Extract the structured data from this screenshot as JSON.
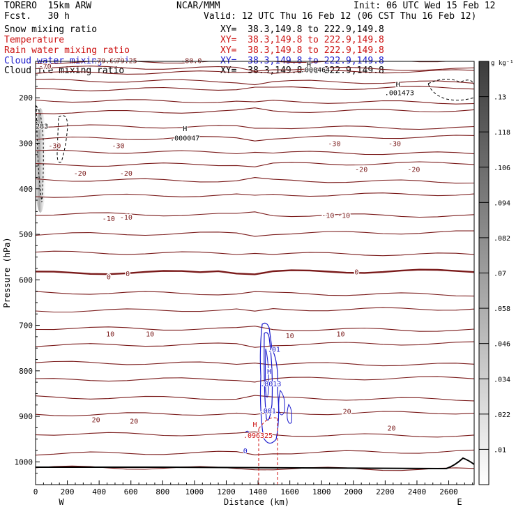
{
  "header": {
    "model": "TORERO  15km ARW",
    "org": "NCAR/MMM",
    "init": "Init: 06 UTC Wed 15 Feb 12",
    "fcst": "Fcst.   30 h",
    "valid": "Valid: 12 UTC Thu 16 Feb 12 (06 CST Thu 16 Feb 12)",
    "fields": [
      {
        "name": "Snow mixing ratio",
        "xy": "XY=  38.3,149.8 to 222.9,149.8",
        "color": "#000000"
      },
      {
        "name": "Temperature",
        "xy": "XY=  38.3,149.8 to 222.9,149.8",
        "color": "#cc1111"
      },
      {
        "name": "Rain water mixing ratio",
        "xy": "XY=  38.3,149.8 to 222.9,149.8",
        "color": "#cc1111"
      },
      {
        "name": "Cloud water mixing ratio",
        "xy": "XY=  38.3,149.8 to 222.9,149.8",
        "color": "#1a1acc"
      },
      {
        "name": "Cloud ice mixing ratio",
        "xy": "XY=  38.3,149.8 to 222.9,149.8",
        "color": "#000000"
      }
    ]
  },
  "chart_data": {
    "type": "cross-section",
    "title": "",
    "xlabel": "Distance (km)",
    "ylabel": "Pressure (hPa)",
    "x_end_labels": {
      "left": "W",
      "right": "E"
    },
    "xlim": [
      0,
      2760
    ],
    "ylim": [
      1050,
      120
    ],
    "x_ticks": [
      0,
      200,
      400,
      600,
      800,
      1000,
      1200,
      1400,
      1600,
      1800,
      2000,
      2200,
      2400,
      2600
    ],
    "y_ticks": [
      200,
      300,
      400,
      500,
      600,
      700,
      800,
      900,
      1000
    ],
    "grid": false,
    "colorbar": {
      "unit": "g kg⁻¹",
      "levels": [
        0.01,
        0.022,
        0.034,
        0.046,
        0.058,
        0.07,
        0.082,
        0.094,
        0.106,
        0.118,
        0.13
      ],
      "labels": [
        ".01",
        ".022",
        ".034",
        ".046",
        ".058",
        ".07",
        ".082",
        ".094",
        ".106",
        ".118",
        ".13"
      ],
      "color_low": "#ffffff",
      "color_high": "#3c3c3c"
    },
    "temperature_contours": {
      "interval_C": 5,
      "color": "#7a1a1a",
      "labels": [
        {
          "x": 60,
          "p": 130,
          "text": "-70"
        },
        {
          "x": 440,
          "p": 118,
          "text": "-79.69"
        },
        {
          "x": 560,
          "p": 118,
          "text": "-79.25"
        },
        {
          "x": 980,
          "p": 118,
          "text": "-80.0"
        },
        {
          "x": 120,
          "p": 305,
          "text": "-30"
        },
        {
          "x": 520,
          "p": 305,
          "text": "-30"
        },
        {
          "x": 1880,
          "p": 300,
          "text": "-30"
        },
        {
          "x": 2260,
          "p": 300,
          "text": "-30"
        },
        {
          "x": 280,
          "p": 365,
          "text": "-20"
        },
        {
          "x": 570,
          "p": 365,
          "text": "-20"
        },
        {
          "x": 2050,
          "p": 357,
          "text": "-20"
        },
        {
          "x": 2380,
          "p": 357,
          "text": "-20"
        },
        {
          "x": 460,
          "p": 465,
          "text": "-10"
        },
        {
          "x": 570,
          "p": 462,
          "text": "-10"
        },
        {
          "x": 1840,
          "p": 458,
          "text": "-10"
        },
        {
          "x": 1940,
          "p": 458,
          "text": "-10"
        },
        {
          "x": 460,
          "p": 593,
          "text": "0"
        },
        {
          "x": 580,
          "p": 586,
          "text": "0"
        },
        {
          "x": 2020,
          "p": 582,
          "text": "0"
        },
        {
          "x": 470,
          "p": 718,
          "text": "10"
        },
        {
          "x": 720,
          "p": 718,
          "text": "10"
        },
        {
          "x": 1600,
          "p": 722,
          "text": "10"
        },
        {
          "x": 1920,
          "p": 718,
          "text": "10"
        },
        {
          "x": 380,
          "p": 907,
          "text": "20"
        },
        {
          "x": 620,
          "p": 910,
          "text": "20"
        },
        {
          "x": 1960,
          "p": 888,
          "text": "20"
        },
        {
          "x": 2240,
          "p": 925,
          "text": "20"
        }
      ]
    },
    "annotations": [
      {
        "x": 940,
        "p": 267,
        "text": "H"
      },
      {
        "x": 940,
        "p": 288,
        "text": ".000047"
      },
      {
        "x": 2280,
        "p": 170,
        "text": "H"
      },
      {
        "x": 2290,
        "p": 188,
        "text": ".001473"
      },
      {
        "x": 1720,
        "p": 126,
        "text": "H"
      },
      {
        "x": 1760,
        "p": 138,
        "text": ".000464"
      },
      {
        "x": 40,
        "p": 262,
        "text": "283"
      },
      {
        "x": 1470,
        "p": 800,
        "text": "H"
      },
      {
        "x": 1480,
        "p": 828,
        "text": ".8013"
      },
      {
        "x": 1460,
        "p": 887,
        "text": ".001"
      },
      {
        "x": 1380,
        "p": 917,
        "text": "H"
      },
      {
        "x": 1400,
        "p": 941,
        "text": ".096325"
      },
      {
        "x": 1500,
        "p": 752,
        "text": ".01"
      },
      {
        "x": 1320,
        "p": 975,
        "text": "0"
      }
    ]
  }
}
